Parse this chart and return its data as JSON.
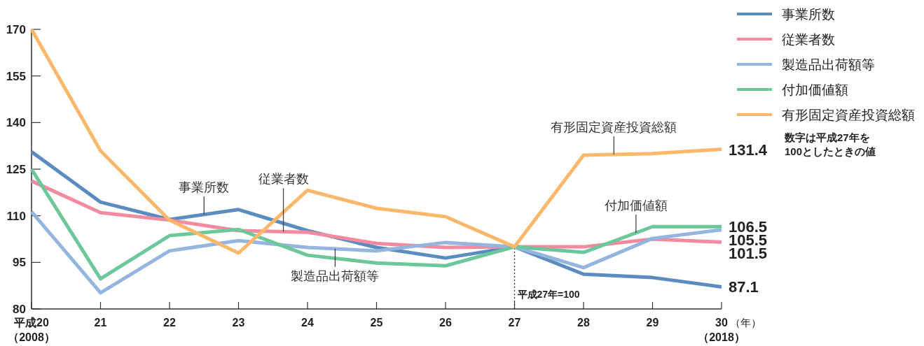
{
  "chart_data": {
    "type": "line",
    "x": [
      20,
      21,
      22,
      23,
      24,
      25,
      26,
      27,
      28,
      29,
      30
    ],
    "xlim": [
      20,
      30
    ],
    "xticks": [
      {
        "value": 20,
        "label": "平成20\n（2008）"
      },
      21,
      22,
      23,
      24,
      25,
      26,
      27,
      28,
      29,
      {
        "value": 30,
        "label": "30\n（2018）"
      }
    ],
    "xlabel": "（年）",
    "ylim": [
      80,
      170
    ],
    "yticks": [
      80,
      95,
      110,
      125,
      140,
      155,
      170
    ],
    "legend": "top right",
    "series": [
      {
        "name": "事業所数",
        "color": "#5b8cbf",
        "values": [
          130.6,
          114.4,
          108.8,
          112,
          105.2,
          99.8,
          96.4,
          100,
          91.2,
          90.1,
          87.1
        ],
        "value_labels": [
          null,
          null,
          null,
          null,
          null,
          null,
          null,
          null,
          null,
          null,
          "87.1"
        ]
      },
      {
        "name": "従業者数",
        "color": "#f28aa0",
        "values": [
          121.2,
          111,
          108.6,
          105.2,
          104.7,
          101.1,
          99.8,
          100,
          100,
          102.5,
          101.5
        ],
        "value_labels": [
          null,
          null,
          null,
          null,
          null,
          null,
          null,
          null,
          null,
          null,
          "101.5"
        ]
      },
      {
        "name": "製造品出荷額等",
        "color": "#94b5e0",
        "values": [
          111.3,
          85.2,
          98.7,
          102,
          99.8,
          98.7,
          101.4,
          100,
          93.3,
          102.7,
          105.5
        ],
        "value_labels": [
          null,
          null,
          null,
          null,
          null,
          null,
          null,
          null,
          null,
          null,
          "105.5"
        ]
      },
      {
        "name": "付加価値額",
        "color": "#6cc79a",
        "values": [
          125,
          89.7,
          103.6,
          105.6,
          97.3,
          94.8,
          93.9,
          100,
          98.2,
          106.5,
          106.5
        ],
        "value_labels": [
          null,
          null,
          null,
          null,
          null,
          null,
          null,
          null,
          null,
          null,
          "106.5"
        ]
      },
      {
        "name": "有形固定資産投資総額",
        "color": "#fbb86b",
        "values": [
          170,
          130.9,
          108.6,
          98,
          118.2,
          112.4,
          109.7,
          100,
          129.5,
          130,
          131.4
        ],
        "value_labels": [
          null,
          null,
          null,
          null,
          null,
          null,
          null,
          null,
          null,
          null,
          "131.4"
        ]
      }
    ],
    "ref_lines": [
      {
        "axis": "x",
        "value": 27,
        "label": "平成27年=100",
        "line_style": "dotted",
        "color": "#333333"
      }
    ],
    "annotations": [
      {
        "text": "事業所数",
        "x": 22.5,
        "y": 110.4
      },
      {
        "text": "製造品出荷額等",
        "x": 24.4,
        "y": 99.4
      },
      {
        "text": "従業者数",
        "x": 23.65,
        "y": 104.9
      },
      {
        "text": "付加価値額",
        "x": 28.76,
        "y": 104.5
      },
      {
        "text": "有形固定資産投資総額",
        "x": 28.44,
        "y": 129.7
      },
      "数字は平成27年を\n100としたときの値"
    ]
  }
}
